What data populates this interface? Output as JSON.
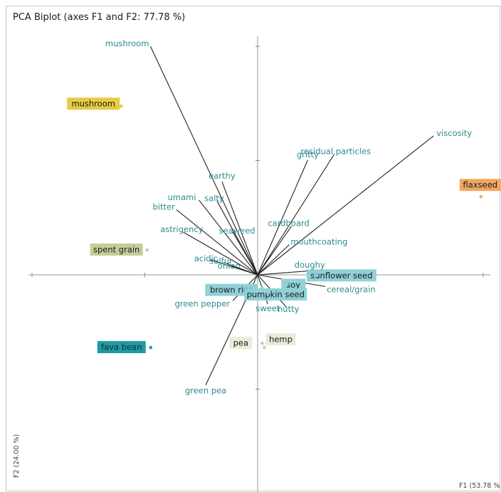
{
  "chart_data": {
    "type": "scatter",
    "title": "PCA Biplot (axes F1 and F2: 77.78 %)",
    "xlabel": "F1 (53.78 %",
    "ylabel": "F2 (24.00 %)",
    "xlim": [
      -1.0,
      1.0
    ],
    "ylim": [
      -1.0,
      1.0
    ],
    "grid": false,
    "legend": "none",
    "colors": {
      "axis": "#999999",
      "vector": "#222222",
      "variable_text": "#2a8a8e",
      "label_text": "#1a1a1a",
      "tick": "#888888"
    },
    "variables": [
      {
        "name": "mushroom",
        "x": -0.475,
        "y": 1.0
      },
      {
        "name": "viscosity",
        "x": 0.78,
        "y": 0.608
      },
      {
        "name": "residual particles",
        "x": 0.34,
        "y": 0.528
      },
      {
        "name": "earthy",
        "x": -0.158,
        "y": 0.408
      },
      {
        "name": "gritty",
        "x": 0.222,
        "y": 0.502
      },
      {
        "name": "umami",
        "x": -0.26,
        "y": 0.327
      },
      {
        "name": "salty",
        "x": -0.18,
        "y": 0.323
      },
      {
        "name": "bitter",
        "x": -0.36,
        "y": 0.285
      },
      {
        "name": "cardboard",
        "x": 0.15,
        "y": 0.213
      },
      {
        "name": "astrigency",
        "x": -0.33,
        "y": 0.187
      },
      {
        "name": "seaweed",
        "x": -0.11,
        "y": 0.187
      },
      {
        "name": "mouthcoating",
        "x": 0.14,
        "y": 0.132
      },
      {
        "name": "acidic",
        "x": -0.21,
        "y": 0.066
      },
      {
        "name": "sulfur",
        "x": -0.15,
        "y": 0.054
      },
      {
        "name": "onion",
        "x": -0.114,
        "y": 0.039
      },
      {
        "name": "doughy",
        "x": 0.25,
        "y": 0.019
      },
      {
        "name": "cereal/grain",
        "x": 0.3,
        "y": -0.051
      },
      {
        "name": "nutty",
        "x": 0.13,
        "y": -0.144
      },
      {
        "name": "sweet",
        "x": 0.045,
        "y": -0.128
      },
      {
        "name": "green pepper",
        "x": -0.11,
        "y": -0.113
      },
      {
        "name": "green pea",
        "x": -0.23,
        "y": -0.482
      }
    ],
    "observations": [
      {
        "name": "mushroom",
        "x": -0.605,
        "y": 0.738,
        "color": "#e6cc45"
      },
      {
        "name": "flaxseed",
        "x": 0.99,
        "y": 0.342,
        "color": "#f0a860"
      },
      {
        "name": "spent grain",
        "x": -0.49,
        "y": 0.109,
        "color": "#c3cf9a"
      },
      {
        "name": "sunflower seed",
        "x": 0.255,
        "y": -0.004,
        "color": "#8fd1d6"
      },
      {
        "name": "soy",
        "x": 0.13,
        "y": -0.039,
        "color": "#8fd1d6"
      },
      {
        "name": "brown rice",
        "x": 0.02,
        "y": -0.058,
        "color": "#8fd1d6"
      },
      {
        "name": "pumpkin seed",
        "x": 0.045,
        "y": -0.078,
        "color": "#8fd1d6"
      },
      {
        "name": "pea",
        "x": 0.02,
        "y": -0.299,
        "color": "#e9ecd8"
      },
      {
        "name": "hemp",
        "x": 0.03,
        "y": -0.318,
        "color": "#e9ecd8"
      },
      {
        "name": "fava bean",
        "x": -0.474,
        "y": -0.318,
        "color": "#1f9aa6"
      }
    ]
  }
}
